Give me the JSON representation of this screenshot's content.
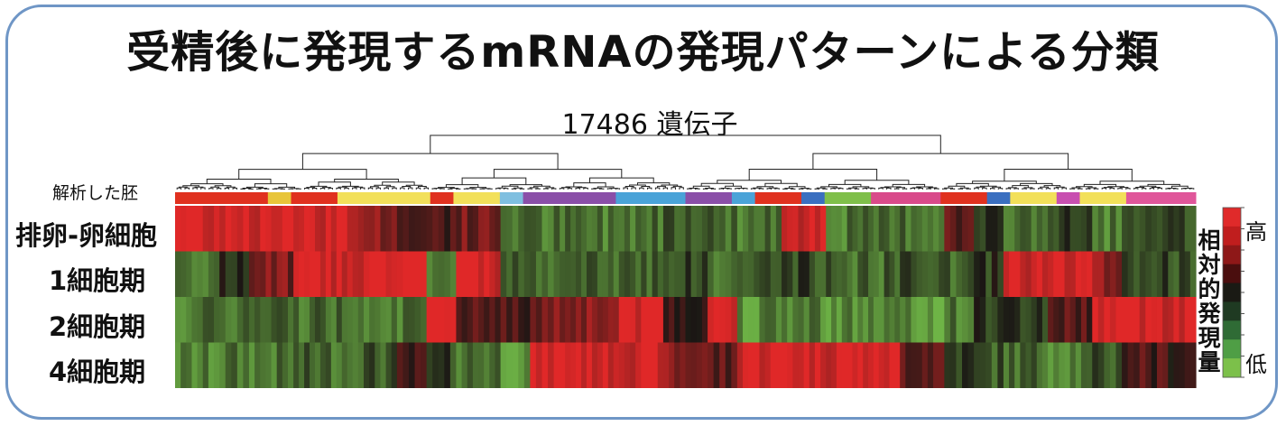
{
  "title": "受精後に発現するmRNAの発現パターンによる分類",
  "gene_count_label": "17486 遺伝子",
  "embryo_label": "解析した胚",
  "legend": {
    "title": "相対的発現量",
    "high": "高",
    "low": "低",
    "colors": [
      "#e02a2a",
      "#c01e1e",
      "#8e1818",
      "#4a0e0e",
      "#1a1a14",
      "#1f3a22",
      "#2f6b35",
      "#4f9e45",
      "#7cc04a"
    ]
  },
  "chart_data": {
    "type": "heatmap",
    "title": "受精後に発現するmRNAの発現パターンによる分類",
    "subtitle": "17486 遺伝子",
    "rows": [
      "排卵-卵細胞",
      "1細胞期",
      "2細胞期",
      "4細胞期"
    ],
    "value_range": [
      -1,
      1
    ],
    "column_blocks": [
      {
        "weight": 3,
        "values": [
          1,
          -0.5,
          -0.6,
          -0.7
        ]
      },
      {
        "weight": 2,
        "values": [
          1,
          -0.2,
          -0.5,
          -0.6
        ]
      },
      {
        "weight": 3,
        "values": [
          1,
          0.5,
          -0.5,
          -0.6
        ]
      },
      {
        "weight": 4,
        "values": [
          1,
          1,
          -0.5,
          -0.5
        ]
      },
      {
        "weight": 3,
        "values": [
          0.6,
          1,
          -0.5,
          -0.4
        ]
      },
      {
        "weight": 2,
        "values": [
          0.2,
          1,
          -0.6,
          0.1
        ]
      },
      {
        "weight": 2,
        "values": [
          0.3,
          -0.5,
          1,
          -0.3
        ]
      },
      {
        "weight": 3,
        "values": [
          0.4,
          1,
          0.4,
          -0.5
        ]
      },
      {
        "weight": 2,
        "values": [
          -0.5,
          -0.4,
          0.2,
          -0.7
        ]
      },
      {
        "weight": 2,
        "values": [
          -0.6,
          -0.6,
          0.5,
          1
        ]
      },
      {
        "weight": 4,
        "values": [
          -0.6,
          -0.5,
          0.6,
          1
        ]
      },
      {
        "weight": 3,
        "values": [
          -0.5,
          -0.4,
          1,
          1
        ]
      },
      {
        "weight": 3,
        "values": [
          -0.3,
          -0.3,
          0.2,
          0.5
        ]
      },
      {
        "weight": 2,
        "values": [
          -0.5,
          -0.6,
          1,
          0.3
        ]
      },
      {
        "weight": 3,
        "values": [
          -0.6,
          -0.4,
          -0.7,
          1
        ]
      },
      {
        "weight": 3,
        "values": [
          1,
          -0.3,
          -0.6,
          1
        ]
      },
      {
        "weight": 5,
        "values": [
          -0.6,
          -0.5,
          -0.7,
          1
        ]
      },
      {
        "weight": 3,
        "values": [
          -0.5,
          -0.3,
          -0.8,
          0.4
        ]
      },
      {
        "weight": 2,
        "values": [
          0.3,
          -0.5,
          -0.6,
          -0.2
        ]
      },
      {
        "weight": 2,
        "values": [
          -0.3,
          -0.2,
          -0.2,
          -0.4
        ]
      },
      {
        "weight": 3,
        "values": [
          -0.5,
          1,
          -0.2,
          -0.5
        ]
      },
      {
        "weight": 3,
        "values": [
          -0.3,
          1,
          0.3,
          -0.6
        ]
      },
      {
        "weight": 2,
        "values": [
          -0.6,
          0.5,
          1,
          -0.4
        ]
      },
      {
        "weight": 2,
        "values": [
          -0.5,
          -0.3,
          1,
          0.3
        ]
      },
      {
        "weight": 3,
        "values": [
          -0.4,
          -0.3,
          1,
          0.2
        ]
      }
    ],
    "annotation_bar": [
      {
        "color": "#e0311f",
        "weight": 4
      },
      {
        "color": "#e8c53a",
        "weight": 1
      },
      {
        "color": "#e0311f",
        "weight": 2
      },
      {
        "color": "#f2e05a",
        "weight": 4
      },
      {
        "color": "#e0311f",
        "weight": 1
      },
      {
        "color": "#f2e05a",
        "weight": 2
      },
      {
        "color": "#7fbfe0",
        "weight": 1
      },
      {
        "color": "#8a4fa8",
        "weight": 4
      },
      {
        "color": "#4aa3d8",
        "weight": 3
      },
      {
        "color": "#8a4fa8",
        "weight": 2
      },
      {
        "color": "#4aa3d8",
        "weight": 1
      },
      {
        "color": "#e0311f",
        "weight": 2
      },
      {
        "color": "#3a6fc0",
        "weight": 1
      },
      {
        "color": "#7fbf4a",
        "weight": 2
      },
      {
        "color": "#d94a8a",
        "weight": 3
      },
      {
        "color": "#e0311f",
        "weight": 2
      },
      {
        "color": "#3a6fc0",
        "weight": 1
      },
      {
        "color": "#f2e05a",
        "weight": 2
      },
      {
        "color": "#c84fb0",
        "weight": 1
      },
      {
        "color": "#f2e05a",
        "weight": 2
      },
      {
        "color": "#e0569a",
        "weight": 3
      }
    ]
  }
}
